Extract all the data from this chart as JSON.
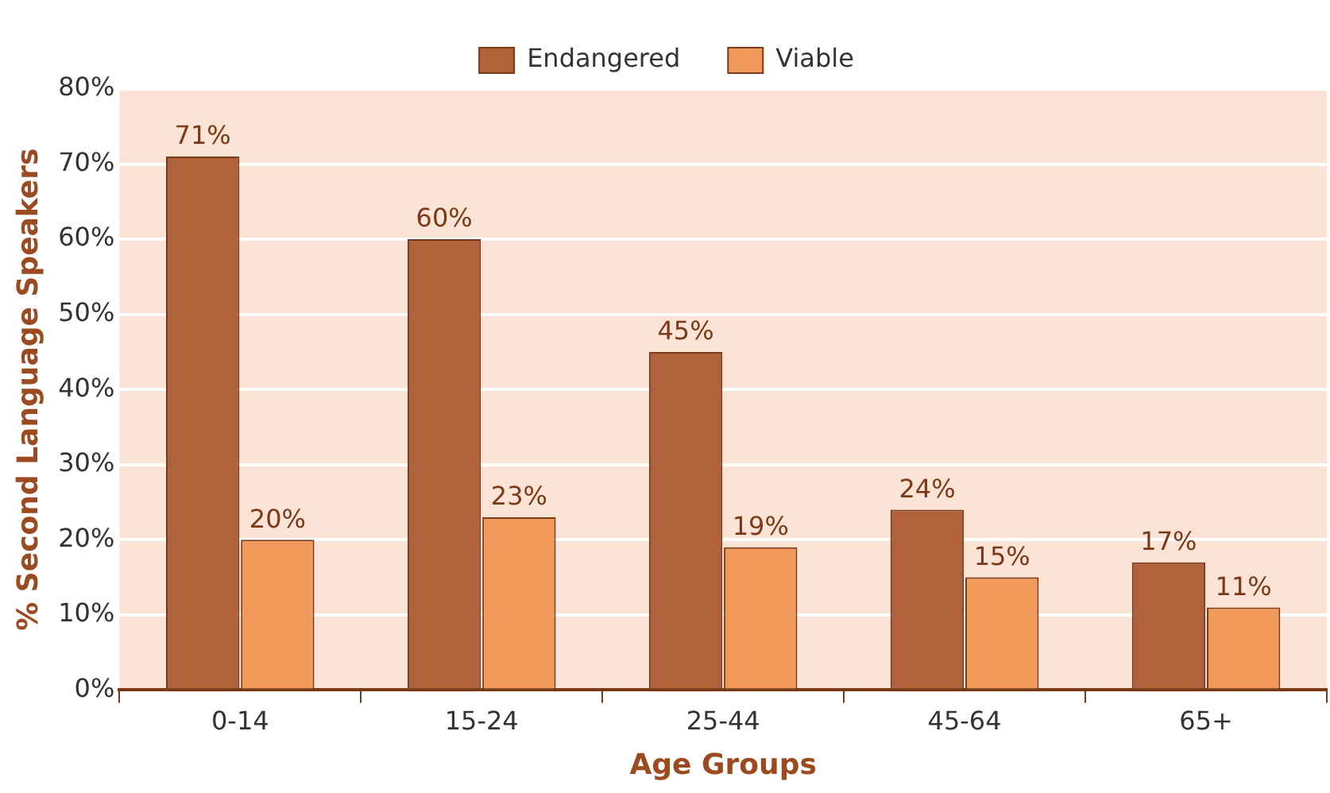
{
  "chart_data": {
    "type": "bar",
    "xlabel": "Age Groups",
    "ylabel": "% Second Language Speakers",
    "categories": [
      "0-14",
      "15-24",
      "25-44",
      "45-64",
      "65+"
    ],
    "series": [
      {
        "name": "Endangered",
        "color": "#b0623a",
        "values": [
          71,
          60,
          45,
          24,
          17
        ],
        "value_labels": [
          "71%",
          "60%",
          "45%",
          "24%",
          "17%"
        ]
      },
      {
        "name": "Viable",
        "color": "#f29a5c",
        "values": [
          20,
          23,
          19,
          15,
          11
        ],
        "value_labels": [
          "20%",
          "23%",
          "19%",
          "15%",
          "11%"
        ]
      }
    ],
    "ylim": [
      0,
      80
    ],
    "yticks": [
      {
        "value": 0,
        "label": "0%"
      },
      {
        "value": 10,
        "label": "10%"
      },
      {
        "value": 20,
        "label": "20%"
      },
      {
        "value": 30,
        "label": "30%"
      },
      {
        "value": 40,
        "label": "40%"
      },
      {
        "value": 50,
        "label": "50%"
      },
      {
        "value": 60,
        "label": "60%"
      },
      {
        "value": 70,
        "label": "70%"
      },
      {
        "value": 80,
        "label": "80%"
      }
    ],
    "grid": "y",
    "legend": "top"
  }
}
